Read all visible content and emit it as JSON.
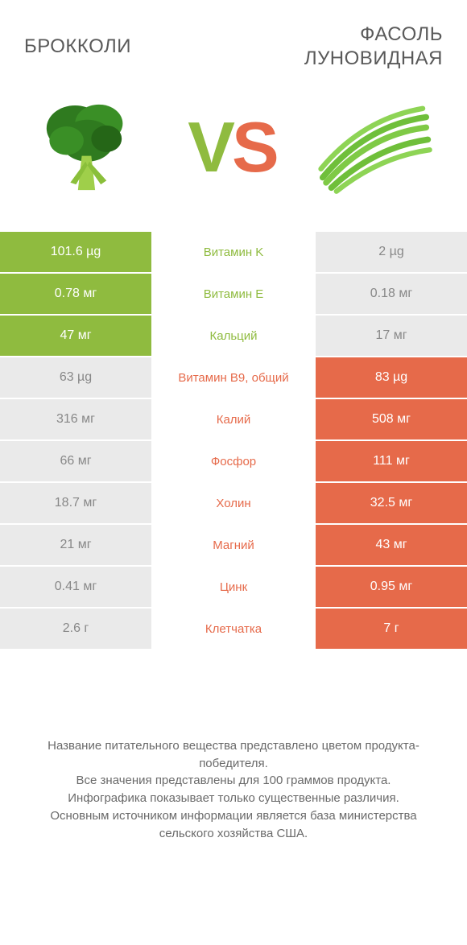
{
  "colors": {
    "green": "#8fbb3f",
    "orange": "#e66a4a",
    "muted_bg": "#eaeaea",
    "muted_text": "#888888",
    "title_text": "#5a5a5a",
    "footer_text": "#6a6a6a"
  },
  "header": {
    "left_title": "Брокколи",
    "right_title_line1": "Фасоль",
    "right_title_line2": "луновидная"
  },
  "vs": {
    "v": "V",
    "s": "S"
  },
  "rows": [
    {
      "left": "101.6 µg",
      "mid": "Витамин K",
      "right": "2 µg",
      "winner": "left"
    },
    {
      "left": "0.78 мг",
      "mid": "Витамин E",
      "right": "0.18 мг",
      "winner": "left"
    },
    {
      "left": "47 мг",
      "mid": "Кальций",
      "right": "17 мг",
      "winner": "left"
    },
    {
      "left": "63 µg",
      "mid": "Витамин B9, общий",
      "right": "83 µg",
      "winner": "right"
    },
    {
      "left": "316 мг",
      "mid": "Калий",
      "right": "508 мг",
      "winner": "right"
    },
    {
      "left": "66 мг",
      "mid": "Фосфор",
      "right": "111 мг",
      "winner": "right"
    },
    {
      "left": "18.7 мг",
      "mid": "Холин",
      "right": "32.5 мг",
      "winner": "right"
    },
    {
      "left": "21 мг",
      "mid": "Магний",
      "right": "43 мг",
      "winner": "right"
    },
    {
      "left": "0.41 мг",
      "mid": "Цинк",
      "right": "0.95 мг",
      "winner": "right"
    },
    {
      "left": "2.6 г",
      "mid": "Клетчатка",
      "right": "7 г",
      "winner": "right"
    }
  ],
  "footer": {
    "l1": "Название питательного вещества представлено цветом продукта-победителя.",
    "l2": "Все значения представлены для 100 граммов продукта.",
    "l3": "Инфографика показывает только существенные различия.",
    "l4": "Основным источником информации является база министерства сельского хозяйства США."
  }
}
